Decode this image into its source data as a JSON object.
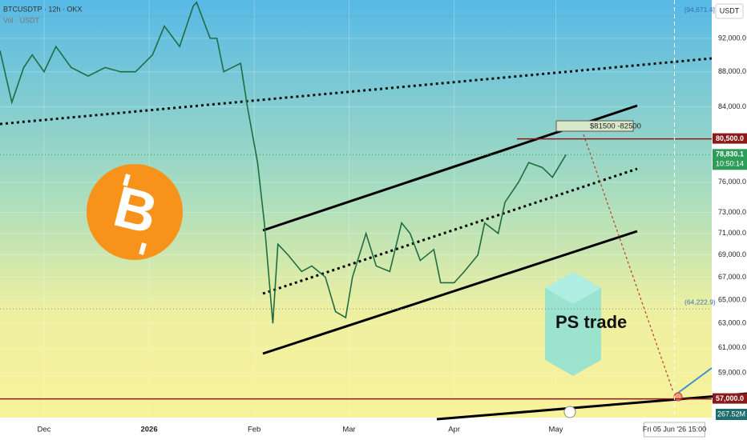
{
  "chart_data": {
    "type": "line",
    "title": "BTCUSDTP · 12h · OKX",
    "subtitle": "Vol · USDT",
    "series": [
      {
        "name": "BTCUSDTP",
        "color": "#1f6e43",
        "x": [
          -13,
          -9.5,
          -6,
          -3.5,
          0,
          3.5,
          8,
          13,
          18,
          22.5,
          27,
          32,
          35.5,
          40,
          44,
          45,
          49,
          51,
          53,
          58,
          60,
          63,
          65,
          67.5,
          69,
          72,
          76,
          79,
          83,
          86,
          89,
          91,
          95,
          98,
          102,
          105.5,
          108,
          111,
          115,
          117,
          121,
          124,
          128,
          130,
          134,
          136,
          140,
          143,
          147,
          150,
          154
        ],
        "values": [
          90500,
          84500,
          88500,
          90000,
          88000,
          91000,
          88500,
          87500,
          88500,
          88000,
          88000,
          90000,
          93500,
          91000,
          96000,
          96500,
          92000,
          92000,
          88000,
          89000,
          84000,
          78000,
          72000,
          63000,
          70000,
          69000,
          67500,
          68000,
          67000,
          64000,
          63500,
          67000,
          71000,
          68000,
          67500,
          72000,
          71000,
          68500,
          69500,
          66500,
          66500,
          67500,
          69000,
          72000,
          71000,
          74000,
          76000,
          78000,
          77500,
          76500,
          78830.1
        ]
      }
    ],
    "xlim": [
      -13,
      197
    ],
    "xticks": [
      {
        "value": 0,
        "label": "Dec"
      },
      {
        "value": 31,
        "label": "2026"
      },
      {
        "value": 62,
        "label": "Feb"
      },
      {
        "value": 90,
        "label": "Mar"
      },
      {
        "value": 121,
        "label": "Apr"
      },
      {
        "value": 151,
        "label": "May"
      }
    ],
    "ylim": [
      55600,
      96800
    ],
    "log_y": true,
    "y_axis_unit": "USDT",
    "yticks": [
      {
        "value": 92000,
        "label": "92,000.0"
      },
      {
        "value": 88000,
        "label": "88,000.0"
      },
      {
        "value": 84000,
        "label": "84,000.0"
      },
      {
        "value": 76000,
        "label": "76,000.0"
      },
      {
        "value": 73000,
        "label": "73,000.0"
      },
      {
        "value": 71000,
        "label": "71,000.0"
      },
      {
        "value": 69000,
        "label": "69,000.0"
      },
      {
        "value": 67000,
        "label": "67,000.0"
      },
      {
        "value": 65000,
        "label": "65,000.0"
      },
      {
        "value": 63000,
        "label": "63,000.0"
      },
      {
        "value": 61000,
        "label": "61,000.0"
      },
      {
        "value": 59000,
        "label": "59,000.0"
      }
    ],
    "levels": [
      {
        "value": 94671.4,
        "label": "[94,671.4]",
        "color": "#8a8a8a",
        "style": "dotted",
        "placement": "inside"
      },
      {
        "value": 80500,
        "label": "80,500.0",
        "color": "#8b1a1a",
        "style": "solid",
        "placement": "axis"
      },
      {
        "value": 78830.1,
        "label": "78,830.1",
        "color": "#2e9d5a",
        "style": "dotted",
        "placement": "axis",
        "countdown": "10:50:14"
      },
      {
        "value": 64222.9,
        "label": "(64,222.9)",
        "color": "#8a8a8a",
        "style": "dotted",
        "placement": "inside"
      },
      {
        "value": 57000,
        "label": "57,000.0",
        "color": "#8b1a1a",
        "style": "solid",
        "placement": "axis"
      }
    ],
    "crosshair": {
      "x": 186,
      "label": "Fri 05 Jun '26  15:00"
    },
    "volume_label": "267.52M",
    "annotations": {
      "target_box": "$81500 -82500",
      "brand": "PS trade",
      "logo": "B"
    }
  }
}
